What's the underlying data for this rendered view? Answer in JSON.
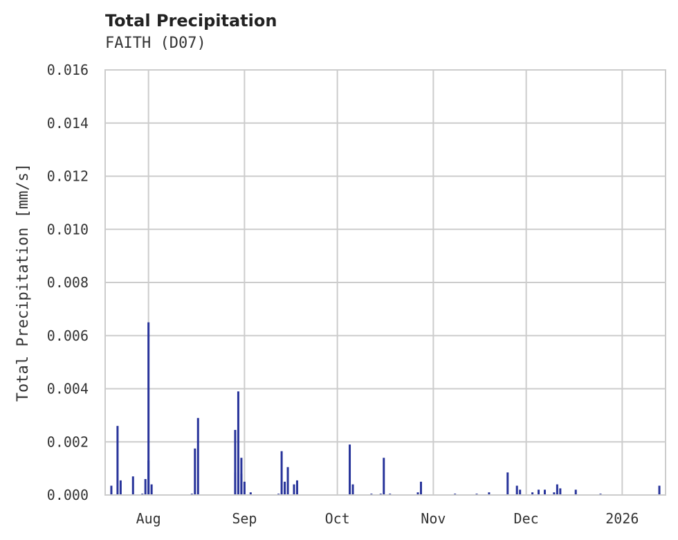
{
  "header": {
    "title": "Total Precipitation",
    "subtitle": "FAITH (D07)"
  },
  "chart_data": {
    "type": "bar",
    "title": "Total Precipitation",
    "subtitle": "FAITH (D07)",
    "xlabel": "",
    "ylabel": "Total Precipitation [mm/s]",
    "ylim": [
      0,
      0.016
    ],
    "yticks": [
      "0.000",
      "0.002",
      "0.004",
      "0.006",
      "0.008",
      "0.010",
      "0.012",
      "0.014",
      "0.016"
    ],
    "xlim": [
      "2025-07-18",
      "2026-01-15"
    ],
    "xticks": [
      {
        "label": "Aug",
        "date": "2025-08-01"
      },
      {
        "label": "Sep",
        "date": "2025-09-01"
      },
      {
        "label": "Oct",
        "date": "2025-10-01"
      },
      {
        "label": "Nov",
        "date": "2025-11-01"
      },
      {
        "label": "Dec",
        "date": "2025-12-01"
      },
      {
        "label": "2026",
        "date": "2026-01-01"
      }
    ],
    "grid": true,
    "color": "#27339a",
    "points": [
      {
        "date": "2025-07-20",
        "value": 0.00035
      },
      {
        "date": "2025-07-22",
        "value": 0.0026
      },
      {
        "date": "2025-07-23",
        "value": 0.00055
      },
      {
        "date": "2025-07-27",
        "value": 0.0007
      },
      {
        "date": "2025-07-30",
        "value": 5e-05
      },
      {
        "date": "2025-07-31",
        "value": 0.0006
      },
      {
        "date": "2025-08-01",
        "value": 0.0065
      },
      {
        "date": "2025-08-01",
        "value": 0.0013
      },
      {
        "date": "2025-08-02",
        "value": 0.0004
      },
      {
        "date": "2025-08-15",
        "value": 5e-05
      },
      {
        "date": "2025-08-16",
        "value": 0.00175
      },
      {
        "date": "2025-08-17",
        "value": 0.0029
      },
      {
        "date": "2025-08-29",
        "value": 0.00085
      },
      {
        "date": "2025-08-29",
        "value": 0.00245
      },
      {
        "date": "2025-08-30",
        "value": 0.0039
      },
      {
        "date": "2025-08-31",
        "value": 0.0014
      },
      {
        "date": "2025-08-31",
        "value": 0.0008
      },
      {
        "date": "2025-09-01",
        "value": 0.0005
      },
      {
        "date": "2025-09-03",
        "value": 0.0001
      },
      {
        "date": "2025-09-12",
        "value": 5e-05
      },
      {
        "date": "2025-09-13",
        "value": 0.00165
      },
      {
        "date": "2025-09-14",
        "value": 0.0005
      },
      {
        "date": "2025-09-15",
        "value": 0.00105
      },
      {
        "date": "2025-09-17",
        "value": 0.0004
      },
      {
        "date": "2025-09-18",
        "value": 0.00055
      },
      {
        "date": "2025-10-05",
        "value": 0.0019
      },
      {
        "date": "2025-10-06",
        "value": 0.0004
      },
      {
        "date": "2025-10-12",
        "value": 5e-05
      },
      {
        "date": "2025-10-15",
        "value": 5e-05
      },
      {
        "date": "2025-10-16",
        "value": 0.0014
      },
      {
        "date": "2025-10-18",
        "value": 5e-05
      },
      {
        "date": "2025-10-27",
        "value": 0.0001
      },
      {
        "date": "2025-10-28",
        "value": 0.0005
      },
      {
        "date": "2025-11-08",
        "value": 5e-05
      },
      {
        "date": "2025-11-15",
        "value": 5e-05
      },
      {
        "date": "2025-11-19",
        "value": 0.0001
      },
      {
        "date": "2025-11-25",
        "value": 0.00085
      },
      {
        "date": "2025-11-28",
        "value": 0.00035
      },
      {
        "date": "2025-11-29",
        "value": 0.0002
      },
      {
        "date": "2025-12-03",
        "value": 0.0001
      },
      {
        "date": "2025-12-05",
        "value": 0.0002
      },
      {
        "date": "2025-12-07",
        "value": 0.0002
      },
      {
        "date": "2025-12-10",
        "value": 0.0001
      },
      {
        "date": "2025-12-11",
        "value": 0.0004
      },
      {
        "date": "2025-12-12",
        "value": 0.00025
      },
      {
        "date": "2025-12-17",
        "value": 0.0002
      },
      {
        "date": "2025-12-25",
        "value": 5e-05
      },
      {
        "date": "2026-01-13",
        "value": 0.00035
      }
    ]
  }
}
